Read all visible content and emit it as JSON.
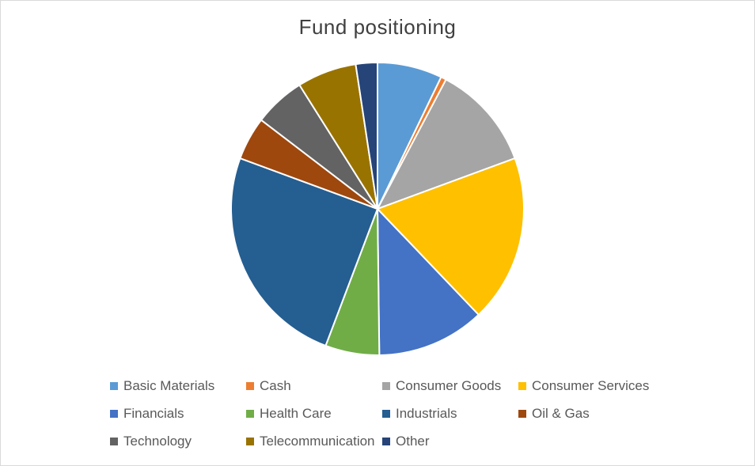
{
  "chart_data": {
    "type": "pie",
    "title": "Fund positioning",
    "legend_position": "bottom",
    "slices": [
      {
        "label": "Basic Materials",
        "value": 7.2,
        "color": "#5b9bd5"
      },
      {
        "label": "Cash",
        "value": 0.6,
        "color": "#ed7d31"
      },
      {
        "label": "Consumer Goods",
        "value": 11.7,
        "color": "#a5a5a5"
      },
      {
        "label": "Consumer Services",
        "value": 18.6,
        "color": "#ffc000"
      },
      {
        "label": "Financials",
        "value": 12.0,
        "color": "#4472c4"
      },
      {
        "label": "Health Care",
        "value": 6.0,
        "color": "#70ad47"
      },
      {
        "label": "Industrials",
        "value": 25.0,
        "color": "#255e91"
      },
      {
        "label": "Oil & Gas",
        "value": 4.8,
        "color": "#9e480e"
      },
      {
        "label": "Technology",
        "value": 5.7,
        "color": "#636363"
      },
      {
        "label": "Telecommunication",
        "value": 6.6,
        "color": "#997300"
      },
      {
        "label": "Other",
        "value": 2.4,
        "color": "#264478"
      }
    ]
  }
}
